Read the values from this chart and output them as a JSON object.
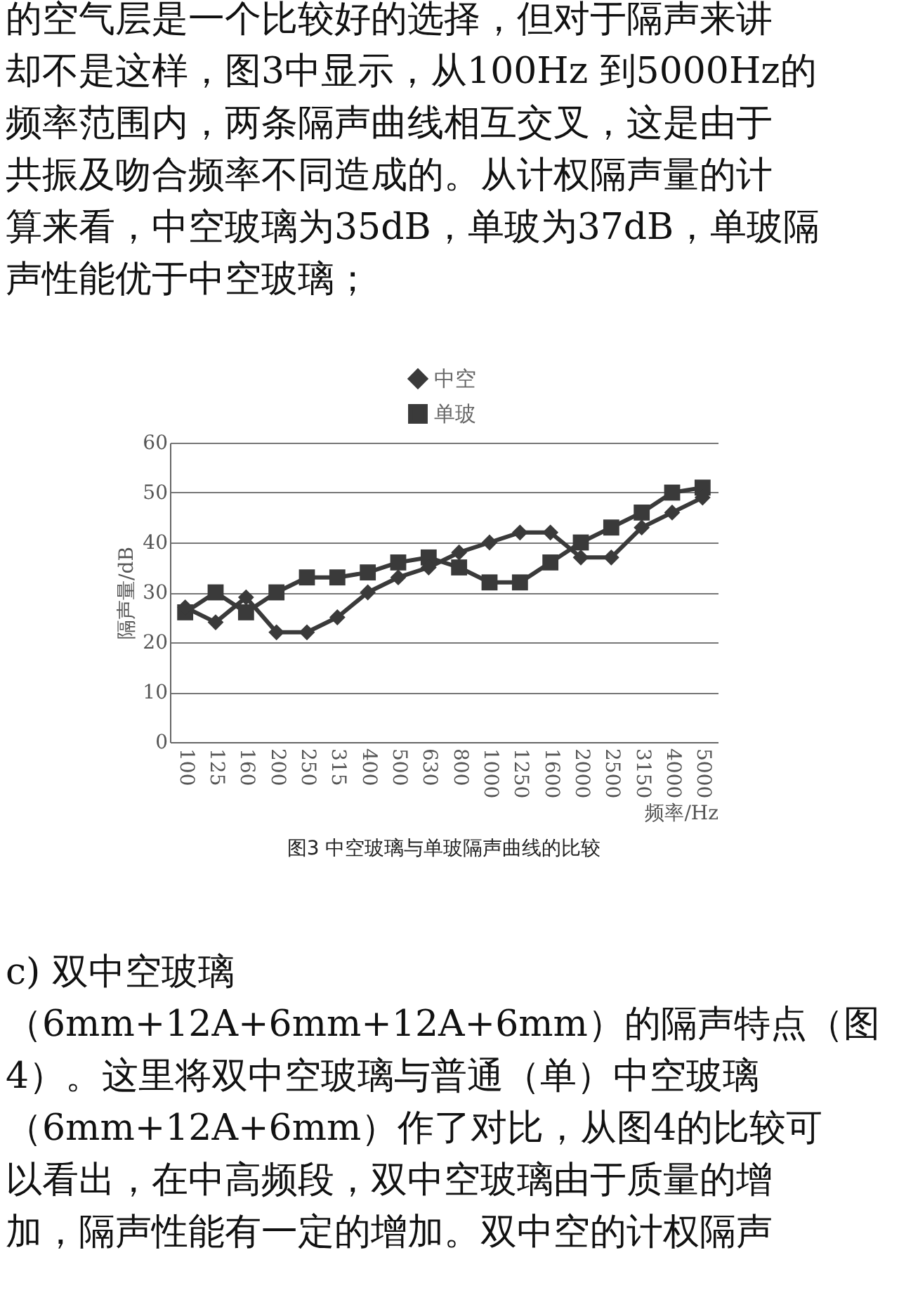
{
  "chart_data": {
    "type": "line",
    "title": "图3 中空玻璃与单玻隔声曲线的比较",
    "xlabel": "频率/Hz",
    "ylabel": "隔声量/dB",
    "categories": [
      "100",
      "125",
      "160",
      "200",
      "250",
      "315",
      "400",
      "500",
      "630",
      "800",
      "1000",
      "1250",
      "1600",
      "2000",
      "2500",
      "3150",
      "4000",
      "5000"
    ],
    "series": [
      {
        "name": "中空",
        "color": "#3a3a3a",
        "marker": "diamond",
        "values": [
          27,
          24,
          29,
          22,
          22,
          25,
          30,
          33,
          35,
          38,
          40,
          42,
          42,
          37,
          37,
          43,
          46,
          49
        ]
      },
      {
        "name": "单玻",
        "color": "#3a3a3a",
        "marker": "square",
        "values": [
          26,
          30,
          26,
          30,
          33,
          33,
          34,
          36,
          37,
          35,
          32,
          32,
          36,
          40,
          43,
          46,
          50,
          51
        ]
      }
    ],
    "ylim": [
      0,
      60
    ],
    "yticks": [
      0,
      10,
      20,
      30,
      40,
      50,
      60
    ],
    "grid": "y",
    "legend": "top",
    "annotations": [
      "的空气层是一个比较好的选择，但对于隔声来讲",
      "却不是这样，图3中显示，从100Hz 到5000Hz的",
      "频率范围内，两条隔声曲线相互交叉，这是由于",
      "共振及吻合频率不同造成的。从计权隔声量的计",
      "算来看，中空玻璃为35dB，单玻为37dB，单玻隔",
      "声性能优于中空玻璃；",
      "c) 双中空玻璃",
      "（6mm+12A+6mm+12A+6mm）的隔声特点（图",
      "4）。这里将双中空玻璃与普通（单）中空玻璃",
      "（6mm+12A+6mm）作了对比，从图4的比较可",
      "以看出，在中高频段，双中空玻璃由于质量的增",
      "加，隔声性能有一定的增加。双中空的计权隔声"
    ]
  }
}
